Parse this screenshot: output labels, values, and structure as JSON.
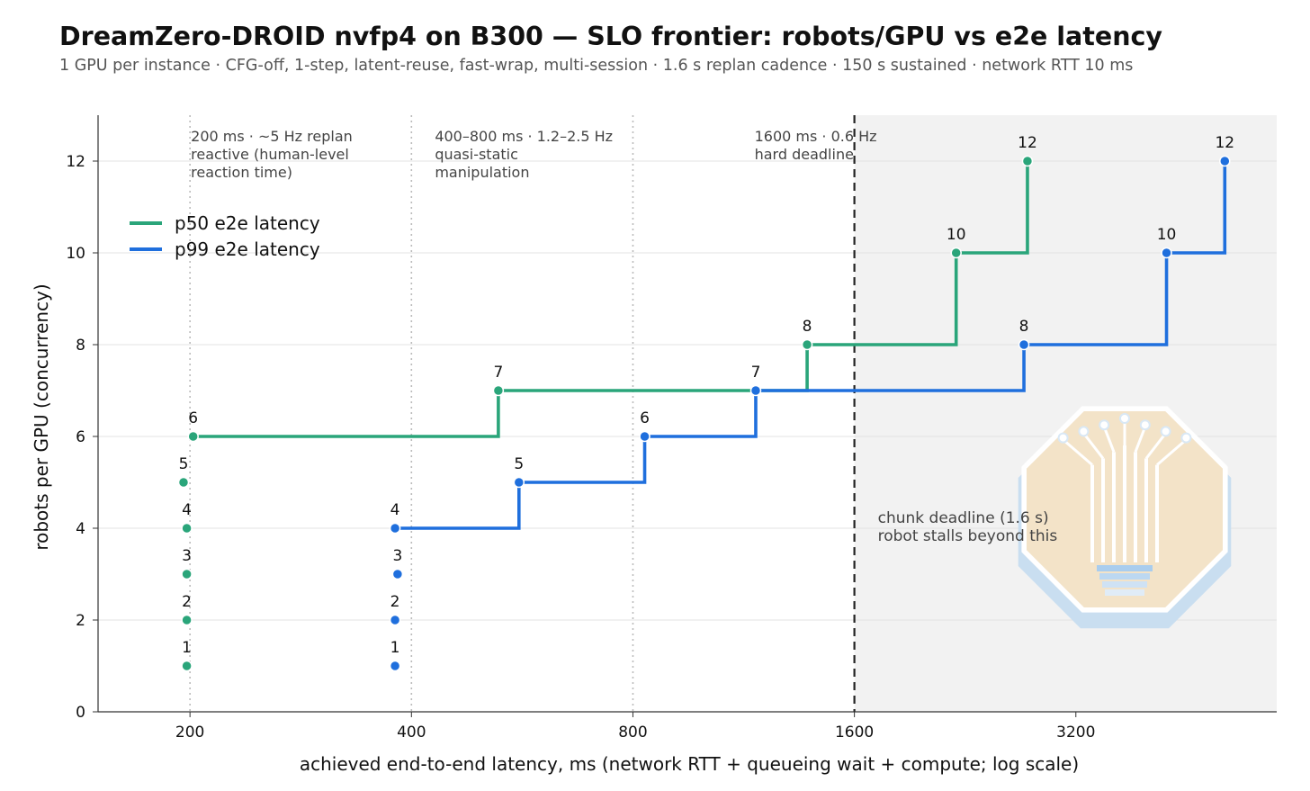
{
  "title": "DreamZero-DROID nvfp4 on B300 — SLO frontier: robots/GPU vs e2e latency",
  "subtitle": "1 GPU per instance · CFG-off, 1-step, latent-reuse, fast-wrap, multi-session · 1.6 s replan cadence · 150 s sustained · network RTT 10 ms",
  "colors": {
    "p50": "#2aa57a",
    "p99": "#1f6fdd",
    "shade": "#f2f2f2",
    "grid": "#e3e3e3",
    "vline": "#bbbbbb",
    "deadline": "#222222"
  },
  "chart_data": {
    "type": "line",
    "xscale": "log2",
    "xlabel": "achieved end-to-end latency, ms  (network RTT + queueing wait + compute; log scale)",
    "ylabel": "robots per GPU (concurrency)",
    "xlim": [
      150,
      6000
    ],
    "ylim": [
      0,
      13
    ],
    "xticks": [
      200,
      400,
      800,
      1600,
      3200
    ],
    "xtick_labels": [
      "200",
      "400",
      "800",
      "1600",
      "3200"
    ],
    "yticks": [
      0,
      2,
      4,
      6,
      8,
      10,
      12
    ],
    "ytick_labels": [
      "0",
      "2",
      "4",
      "6",
      "8",
      "10",
      "12"
    ],
    "grid": "horizontal",
    "legend_position": "upper-left",
    "series": [
      {
        "name": "p50 e2e latency",
        "color": "#2aa57a",
        "points": [
          {
            "x": 198,
            "y": 1,
            "label": "1"
          },
          {
            "x": 198,
            "y": 2,
            "label": "2"
          },
          {
            "x": 198,
            "y": 3,
            "label": "3"
          },
          {
            "x": 198,
            "y": 4,
            "label": "4"
          },
          {
            "x": 196,
            "y": 5,
            "label": "5"
          },
          {
            "x": 202,
            "y": 6,
            "label": "6"
          },
          {
            "x": 525,
            "y": 7,
            "label": "7"
          },
          {
            "x": 1380,
            "y": 8,
            "label": "8"
          },
          {
            "x": 2200,
            "y": 10,
            "label": "10"
          },
          {
            "x": 2750,
            "y": 12,
            "label": "12"
          }
        ],
        "step_from": 6
      },
      {
        "name": "p99 e2e latency",
        "color": "#1f6fdd",
        "points": [
          {
            "x": 380,
            "y": 1,
            "label": "1"
          },
          {
            "x": 380,
            "y": 2,
            "label": "2"
          },
          {
            "x": 383,
            "y": 3,
            "label": "3"
          },
          {
            "x": 380,
            "y": 4,
            "label": "4"
          },
          {
            "x": 560,
            "y": 5,
            "label": "5"
          },
          {
            "x": 830,
            "y": 6,
            "label": "6"
          },
          {
            "x": 1175,
            "y": 7,
            "label": "7"
          },
          {
            "x": 2720,
            "y": 8,
            "label": "8"
          },
          {
            "x": 4250,
            "y": 10,
            "label": "10"
          },
          {
            "x": 5100,
            "y": 12,
            "label": "12"
          }
        ],
        "step_from": 4
      }
    ],
    "reference_lines": [
      {
        "x": 200,
        "style": "dotted",
        "label_lines": [
          "200 ms · ~5 Hz replan",
          "reactive (human-level",
          "reaction time)"
        ]
      },
      {
        "x": 400,
        "style": "dotted",
        "label_lines": [
          "400–800 ms · 1.2–2.5 Hz",
          "quasi-static",
          "manipulation"
        ]
      },
      {
        "x": 800,
        "style": "dotted",
        "label_lines": []
      },
      {
        "x": 1600,
        "style": "dashed",
        "label_lines": [
          "1600 ms · 0.6 Hz",
          "hard deadline"
        ]
      }
    ],
    "deadline_region_text": [
      "chunk deadline (1.6 s)",
      "robot stalls beyond this"
    ]
  }
}
